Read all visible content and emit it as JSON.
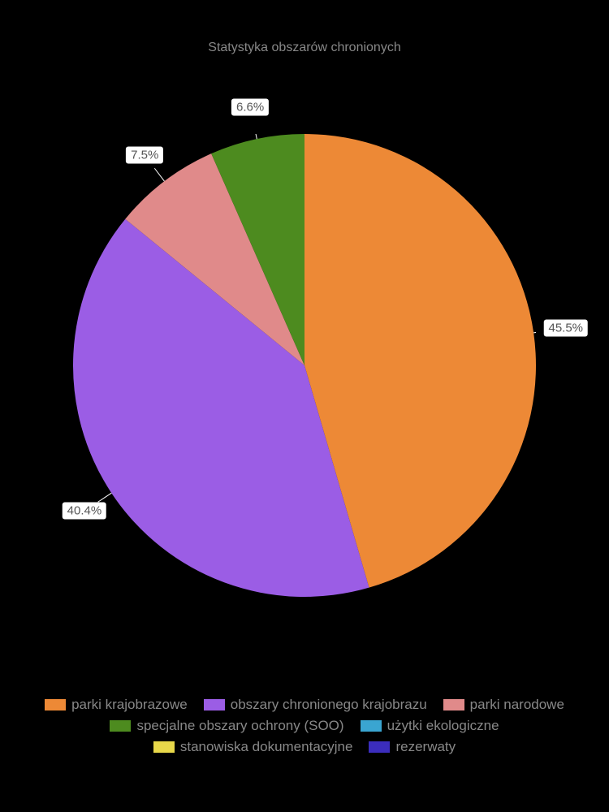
{
  "chart": {
    "type": "pie",
    "title": "Statystyka obszarów chronionych",
    "title_color": "#888888",
    "title_fontsize": 16,
    "background_color": "#000000",
    "pie_radius": 285,
    "start_angle_deg": 90,
    "direction": "clockwise",
    "segments": [
      {
        "label": "parki krajobrazowe",
        "value": 45.5,
        "color": "#ed8936",
        "show_label": true
      },
      {
        "label": "obszary chronionego krajobrazu",
        "value": 40.4,
        "color": "#9b5de5",
        "show_label": true
      },
      {
        "label": "parki narodowe",
        "value": 7.5,
        "color": "#e08a8a",
        "show_label": true
      },
      {
        "label": "specjalne obszary ochrony (SOO)",
        "value": 6.6,
        "color": "#4d8b1f",
        "show_label": true
      },
      {
        "label": "użytki ekologiczne",
        "value": 0,
        "color": "#3aa5d1",
        "show_label": false
      },
      {
        "label": "stanowiska dokumentacyjne",
        "value": 0,
        "color": "#e8d84a",
        "show_label": false
      },
      {
        "label": "rezerwaty",
        "value": 0,
        "color": "#3b2dbd",
        "show_label": false
      }
    ],
    "label_bg": "#ffffff",
    "label_color": "#555555",
    "label_fontsize": 15,
    "legend_color": "#888888",
    "legend_fontsize": 17
  }
}
